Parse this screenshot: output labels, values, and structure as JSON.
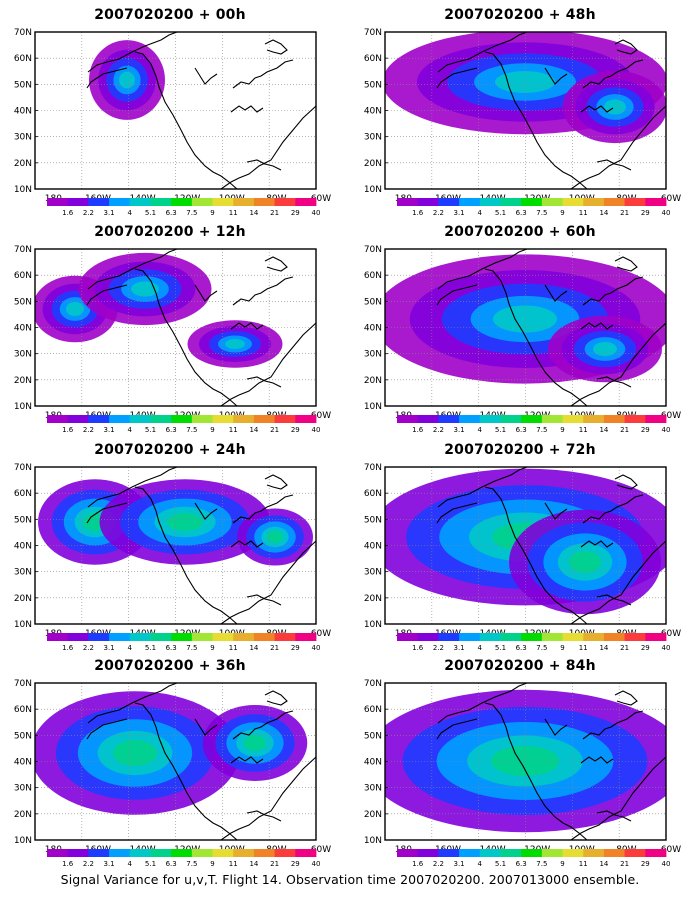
{
  "colors": [
    "#a000c8",
    "#8200dc",
    "#1e3cff",
    "#00a0ff",
    "#00c8c8",
    "#00d28c",
    "#00dc00",
    "#a0e632",
    "#e6dc32",
    "#e6af2d",
    "#f08228",
    "#fa3c3c",
    "#f00082"
  ],
  "colorbar_labels": [
    "1.6",
    "2.2",
    "3.1",
    "4",
    "5.1",
    "6.3",
    "7.5",
    "9",
    "11",
    "14",
    "21",
    "29",
    "40"
  ],
  "x_ticks": [
    "180",
    "160W",
    "140W",
    "120W",
    "100W",
    "80W",
    "60W"
  ],
  "y_ticks": [
    "70N",
    "60N",
    "50N",
    "40N",
    "30N",
    "20N",
    "10N"
  ],
  "panels": [
    {
      "title": "2007020200 + 00h"
    },
    {
      "title": "2007020200 + 48h"
    },
    {
      "title": "2007020200 + 12h"
    },
    {
      "title": "2007020200 + 60h"
    },
    {
      "title": "2007020200 + 24h"
    },
    {
      "title": "2007020200 + 72h"
    },
    {
      "title": "2007020200 + 36h"
    },
    {
      "title": "2007020200 + 84h"
    }
  ],
  "footer": "Signal Variance for u,v,T. Flight 14. Observation time 2007020200. 2007013000 ensemble."
}
